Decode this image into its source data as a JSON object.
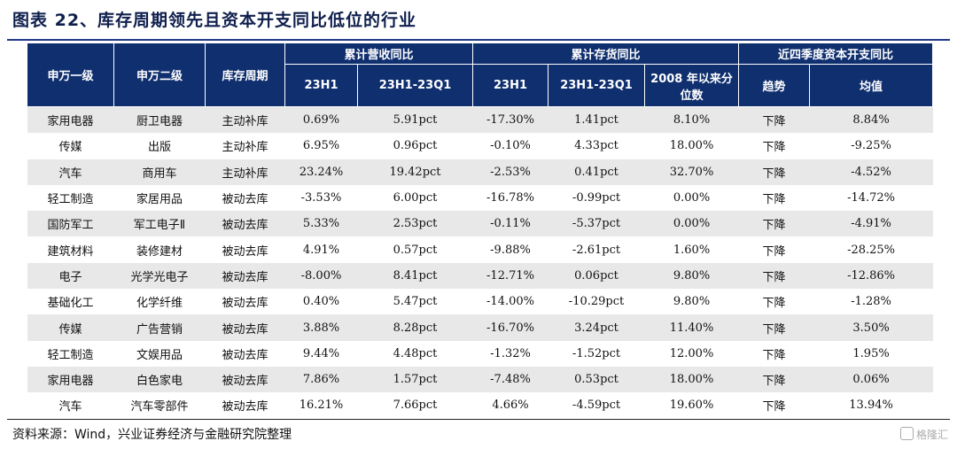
{
  "title": "图表 22、库存周期领先且资本开支同比低位的行业",
  "header": {
    "level1": "申万一级",
    "level2": "申万二级",
    "cycle": "库存周期",
    "group_revenue": "累计营收同比",
    "group_inventory": "累计存货同比",
    "group_capex": "近四季度资本开支同比",
    "rev_23h1": "23H1",
    "rev_diff": "23H1-23Q1",
    "inv_23h1": "23H1",
    "inv_diff": "23H1-23Q1",
    "inv_pct": "2008 年以来分位数",
    "capex_trend": "趋势",
    "capex_avg": "均值"
  },
  "rows": [
    [
      "家用电器",
      "厨卫电器",
      "主动补库",
      "0.69%",
      "5.91pct",
      "-17.30%",
      "1.41pct",
      "8.10%",
      "下降",
      "8.84%"
    ],
    [
      "传媒",
      "出版",
      "主动补库",
      "6.95%",
      "0.96pct",
      "-0.10%",
      "4.33pct",
      "18.00%",
      "下降",
      "-9.25%"
    ],
    [
      "汽车",
      "商用车",
      "主动补库",
      "23.24%",
      "19.42pct",
      "-2.53%",
      "0.41pct",
      "32.70%",
      "下降",
      "-4.52%"
    ],
    [
      "轻工制造",
      "家居用品",
      "被动去库",
      "-3.53%",
      "6.00pct",
      "-16.78%",
      "-0.99pct",
      "0.00%",
      "下降",
      "-14.72%"
    ],
    [
      "国防军工",
      "军工电子Ⅱ",
      "被动去库",
      "5.33%",
      "2.53pct",
      "-0.11%",
      "-5.37pct",
      "0.00%",
      "下降",
      "-4.91%"
    ],
    [
      "建筑材料",
      "装修建材",
      "被动去库",
      "4.91%",
      "0.57pct",
      "-9.88%",
      "-2.61pct",
      "1.60%",
      "下降",
      "-28.25%"
    ],
    [
      "电子",
      "光学光电子",
      "被动去库",
      "-8.00%",
      "8.41pct",
      "-12.71%",
      "0.06pct",
      "9.80%",
      "下降",
      "-12.86%"
    ],
    [
      "基础化工",
      "化学纤维",
      "被动去库",
      "0.40%",
      "5.47pct",
      "-14.00%",
      "-10.29pct",
      "9.80%",
      "下降",
      "-1.28%"
    ],
    [
      "传媒",
      "广告营销",
      "被动去库",
      "3.88%",
      "8.28pct",
      "-16.70%",
      "3.24pct",
      "11.40%",
      "下降",
      "3.50%"
    ],
    [
      "轻工制造",
      "文娱用品",
      "被动去库",
      "9.44%",
      "4.48pct",
      "-1.32%",
      "-1.52pct",
      "12.00%",
      "下降",
      "1.95%"
    ],
    [
      "家用电器",
      "白色家电",
      "被动去库",
      "7.86%",
      "1.57pct",
      "-7.48%",
      "0.53pct",
      "18.00%",
      "下降",
      "0.06%"
    ],
    [
      "汽车",
      "汽车零部件",
      "被动去库",
      "16.21%",
      "7.66pct",
      "4.66%",
      "-4.59pct",
      "19.60%",
      "下降",
      "13.94%"
    ]
  ],
  "source": "资料来源：Wind，兴业证券经济与金融研究院整理",
  "watermark": "格隆汇"
}
